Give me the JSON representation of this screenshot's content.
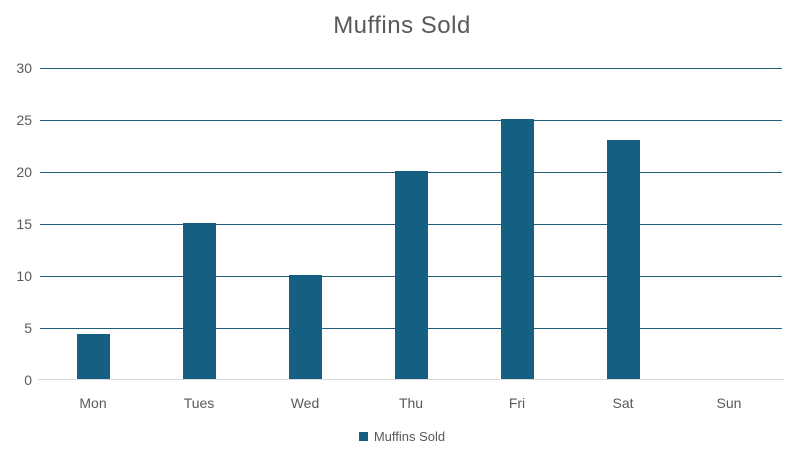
{
  "chart_data": {
    "type": "bar",
    "title": "Muffins Sold",
    "categories": [
      "Mon",
      "Tues",
      "Wed",
      "Thu",
      "Fri",
      "Sat",
      "Sun"
    ],
    "series": [
      {
        "name": "Muffins Sold",
        "values": [
          4.3,
          15,
          10,
          20,
          25,
          23,
          0
        ]
      }
    ],
    "xlabel": "",
    "ylabel": "",
    "ylim": [
      0,
      30
    ],
    "ytick_step": 5,
    "ytick_labels": [
      "0",
      "5",
      "10",
      "15",
      "20",
      "25",
      "30"
    ],
    "grid": true,
    "legend_position": "bottom",
    "colors": {
      "bar": "#156082",
      "gridline": "#1E5F7D",
      "baseline": "#D9D9D9",
      "text": "#595959"
    }
  }
}
